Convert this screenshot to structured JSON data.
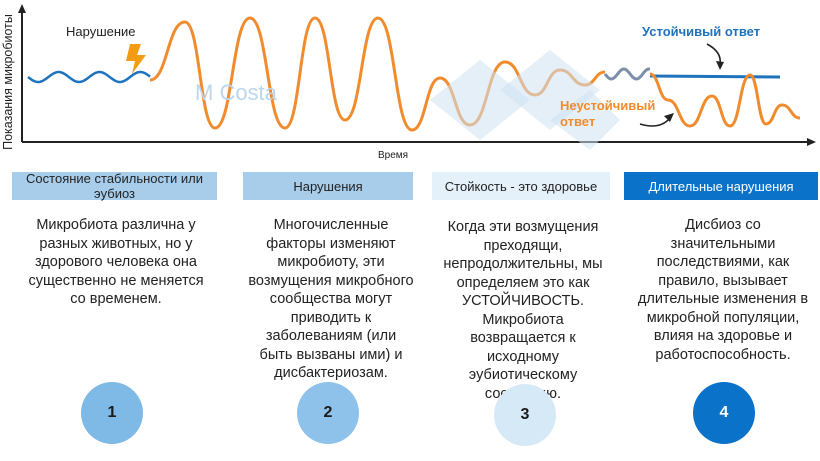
{
  "chart": {
    "ylabel": "Показания микробиоты",
    "xlabel": "Время",
    "annotations": {
      "disturbance": "Нарушение",
      "stable": "Устойчивый ответ",
      "unstable": "Неустойчивый ответ"
    },
    "watermark": "M Costa"
  },
  "colors": {
    "stable_line": "#1e73be",
    "disturbed_line": "#f08c2e",
    "lightning": "#f39c12"
  },
  "columns": [
    {
      "header": "Состояние стабильности или эубиоз",
      "text": "Микробиота различна у разных животных, но у здорового человека она существенно не меняется со временем.",
      "number": "1"
    },
    {
      "header": "Нарушения",
      "text": "Многочисленные факторы изменяют микробиоту, эти возмущения микробного сообщества могут приводить к заболеваниям (или быть вызваны ими) и дисбактериозам.",
      "number": "2"
    },
    {
      "header": "Стойкость - это здоровье",
      "text": "Когда эти возмущения преходящи, непродолжительны, мы определяем это как УСТОЙЧИВОСТЬ. Микробиота возвращается к исходному эубиотическому состоянию.",
      "number": "3"
    },
    {
      "header": "Длительные нарушения",
      "text": "Дисбиоз со значительными последствиями, как правило, вызывает длительные изменения в микробной популяции, влияя на здоровье и работоспособность.",
      "number": "4"
    }
  ]
}
